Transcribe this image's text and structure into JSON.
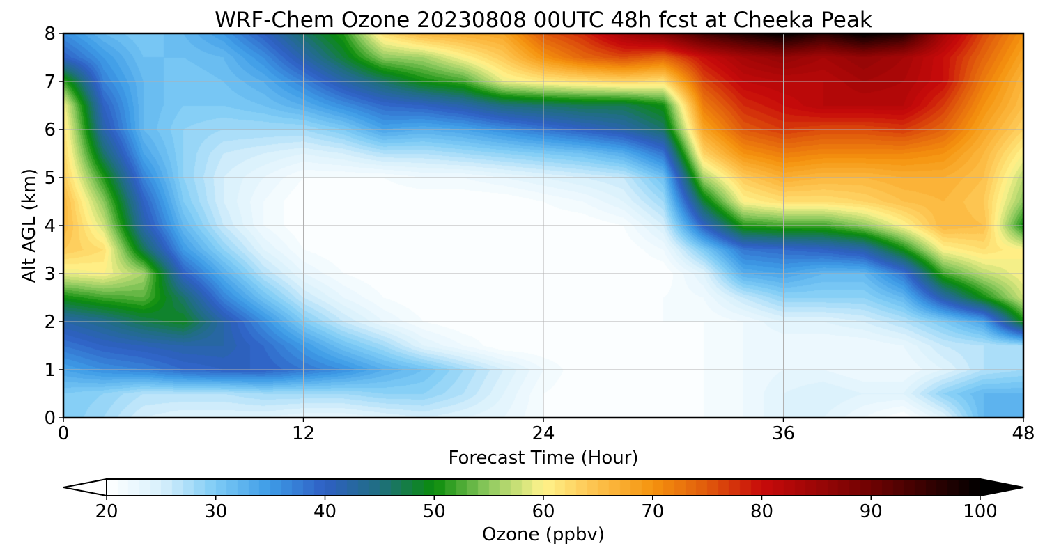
{
  "chart_data": {
    "type": "heatmap",
    "title": "WRF-Chem Ozone  20230808 00UTC 48h fcst at Cheeka Peak",
    "xlabel": "Forecast Time (Hour)",
    "ylabel": "Alt AGL (km)",
    "xlim": [
      0,
      48
    ],
    "ylim": [
      0,
      8
    ],
    "x_ticks": [
      0,
      12,
      24,
      36,
      48
    ],
    "y_ticks": [
      0,
      1,
      2,
      3,
      4,
      5,
      6,
      7,
      8
    ],
    "x_tick_labels": [
      "0",
      "12",
      "24",
      "36",
      "48"
    ],
    "y_tick_labels": [
      "0",
      "1",
      "2",
      "3",
      "4",
      "5",
      "6",
      "7",
      "8"
    ],
    "grid": true,
    "colorbar": {
      "label": "Ozone  (ppbv)",
      "range": [
        20,
        100
      ],
      "ticks": [
        20,
        30,
        40,
        50,
        60,
        70,
        80,
        90,
        100
      ],
      "tick_labels": [
        "20",
        "30",
        "40",
        "50",
        "60",
        "70",
        "80",
        "90",
        "100"
      ],
      "extend": "both",
      "stops": [
        {
          "v": 20,
          "c": "#ffffff"
        },
        {
          "v": 25,
          "c": "#d8f0fc"
        },
        {
          "v": 30,
          "c": "#7dcbf5"
        },
        {
          "v": 35,
          "c": "#3d9be6"
        },
        {
          "v": 40,
          "c": "#2f5fc4"
        },
        {
          "v": 45,
          "c": "#1f6e80"
        },
        {
          "v": 50,
          "c": "#0a8c0a"
        },
        {
          "v": 55,
          "c": "#8fca60"
        },
        {
          "v": 60,
          "c": "#fff38c"
        },
        {
          "v": 65,
          "c": "#fdc04a"
        },
        {
          "v": 70,
          "c": "#f5930e"
        },
        {
          "v": 75,
          "c": "#e05a0c"
        },
        {
          "v": 80,
          "c": "#c80a0a"
        },
        {
          "v": 90,
          "c": "#6e0202"
        },
        {
          "v": 100,
          "c": "#000000"
        }
      ]
    },
    "hours": [
      0,
      2,
      4,
      6,
      8,
      10,
      12,
      14,
      16,
      18,
      20,
      22,
      24,
      26,
      28,
      30,
      32,
      34,
      36,
      38,
      40,
      42,
      44,
      46,
      48
    ],
    "altitudes_km": [
      0,
      0.5,
      1,
      1.5,
      2,
      2.5,
      3,
      3.5,
      4,
      4.5,
      5,
      5.5,
      6,
      6.5,
      7,
      7.5,
      8
    ],
    "values_ppbv": [
      [
        30,
        28,
        25,
        24,
        24,
        24,
        23,
        23,
        24,
        25,
        24,
        23,
        21,
        20,
        20,
        20,
        21,
        22,
        24,
        24,
        22,
        20,
        24,
        32,
        32
      ],
      [
        30,
        29,
        27,
        27,
        27,
        28,
        28,
        28,
        29,
        29,
        27,
        24,
        21,
        20,
        20,
        20,
        21,
        22,
        24,
        25,
        24,
        24,
        29,
        32,
        32
      ],
      [
        34,
        36,
        37,
        39,
        40,
        40,
        38,
        36,
        33,
        31,
        28,
        25,
        22,
        20,
        20,
        20,
        21,
        22,
        23,
        23,
        22,
        22,
        24,
        27,
        28
      ],
      [
        38,
        40,
        41,
        42,
        42,
        39,
        35,
        31,
        28,
        24,
        22,
        20,
        20,
        20,
        20,
        20,
        21,
        22,
        22,
        22,
        22,
        23,
        26,
        27,
        28
      ],
      [
        42,
        44,
        47,
        49,
        42,
        36,
        30,
        26,
        23,
        21,
        20,
        20,
        20,
        20,
        20,
        21,
        21,
        22,
        24,
        24,
        25,
        27,
        30,
        34,
        50
      ],
      [
        50,
        52,
        53,
        46,
        37,
        31,
        26,
        23,
        21,
        20,
        20,
        20,
        20,
        20,
        20,
        21,
        22,
        26,
        29,
        29,
        29,
        32,
        42,
        50,
        58
      ],
      [
        59,
        60,
        56,
        40,
        33,
        27,
        23,
        21,
        20,
        20,
        20,
        20,
        20,
        20,
        20,
        20,
        24,
        33,
        34,
        32,
        32,
        38,
        52,
        57,
        60
      ],
      [
        64,
        62,
        47,
        35,
        29,
        24,
        21,
        20,
        20,
        20,
        20,
        20,
        20,
        20,
        20,
        22,
        30,
        38,
        39,
        40,
        42,
        50,
        60,
        62,
        60
      ],
      [
        66,
        58,
        42,
        32,
        26,
        22,
        20,
        20,
        20,
        20,
        20,
        20,
        20,
        20,
        21,
        25,
        40,
        51,
        52,
        52,
        55,
        60,
        66,
        65,
        50
      ],
      [
        66,
        55,
        40,
        30,
        25,
        22,
        20,
        20,
        20,
        20,
        20,
        20,
        21,
        22,
        24,
        28,
        48,
        60,
        62,
        62,
        63,
        65,
        66,
        64,
        55
      ],
      [
        64,
        51,
        37,
        29,
        25,
        23,
        21,
        21,
        21,
        22,
        22,
        23,
        24,
        25,
        26,
        31,
        56,
        64,
        67,
        66,
        66,
        67,
        67,
        65,
        57
      ],
      [
        63,
        46,
        34,
        29,
        26,
        25,
        24,
        25,
        27,
        27,
        28,
        29,
        30,
        31,
        33,
        38,
        63,
        70,
        72,
        71,
        71,
        71,
        70,
        66,
        60
      ],
      [
        62,
        42,
        32,
        29,
        28,
        28,
        28,
        30,
        34,
        33,
        34,
        36,
        38,
        40,
        42,
        46,
        68,
        75,
        77,
        76,
        76,
        77,
        74,
        68,
        63
      ],
      [
        60,
        40,
        32,
        30,
        30,
        31,
        33,
        36,
        39,
        40,
        42,
        45,
        46,
        47,
        47,
        50,
        72,
        78,
        80,
        82,
        82,
        82,
        77,
        70,
        65
      ],
      [
        52,
        37,
        32,
        30,
        31,
        33,
        37,
        42,
        46,
        50,
        52,
        59,
        61,
        62,
        63,
        62,
        76,
        81,
        82,
        82,
        84,
        83,
        80,
        72,
        66
      ],
      [
        40,
        35,
        31,
        31,
        32,
        36,
        42,
        48,
        55,
        56,
        60,
        64,
        70,
        74,
        76,
        74,
        80,
        84,
        86,
        84,
        86,
        84,
        80,
        74,
        68
      ],
      [
        36,
        32,
        30,
        32,
        35,
        40,
        46,
        51,
        62,
        66,
        67,
        68,
        75,
        78,
        84,
        88,
        94,
        97,
        100,
        96,
        100,
        97,
        84,
        76,
        70
      ]
    ]
  }
}
